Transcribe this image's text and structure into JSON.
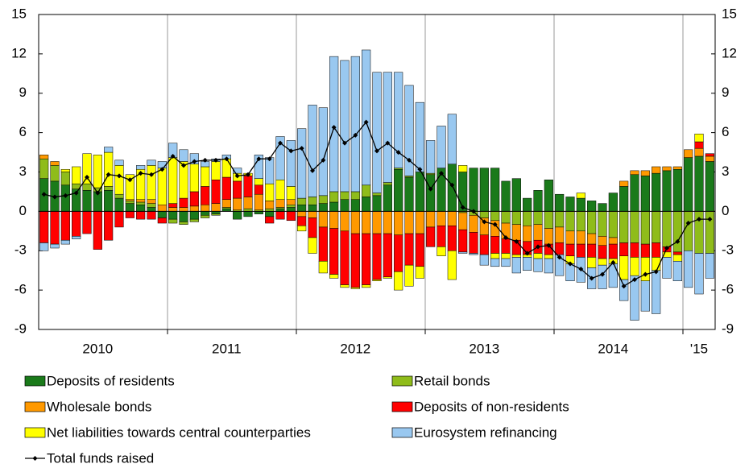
{
  "chart_data": {
    "type": "bar",
    "stacked": true,
    "categories": [
      null,
      null,
      null,
      null,
      null,
      "2010",
      null,
      null,
      null,
      null,
      null,
      null,
      null,
      null,
      null,
      null,
      null,
      "2011",
      null,
      null,
      null,
      null,
      null,
      null,
      null,
      null,
      null,
      null,
      null,
      "2012",
      null,
      null,
      null,
      null,
      null,
      null,
      null,
      null,
      null,
      null,
      null,
      "2013",
      null,
      null,
      null,
      null,
      null,
      null,
      null,
      null,
      null,
      null,
      null,
      "2014",
      null,
      null,
      null,
      null,
      null,
      null,
      null,
      "'15",
      null
    ],
    "ylim": [
      -9,
      15
    ],
    "yticks": [
      15,
      12,
      9,
      6,
      3,
      0,
      -3,
      -6,
      -9
    ],
    "y2lim": [
      -9,
      15
    ],
    "y2ticks": [
      15,
      12,
      9,
      6,
      3,
      0,
      -3,
      -6,
      -9
    ],
    "series": [
      {
        "name": "Deposits of residents",
        "color": "#1a7a1a",
        "values": [
          2.5,
          2.3,
          2.0,
          1.7,
          1.6,
          1.5,
          1.6,
          1.0,
          0.6,
          0.5,
          0.3,
          -0.5,
          -0.6,
          -0.8,
          -0.6,
          -0.3,
          -0.2,
          0.2,
          -0.6,
          -0.4,
          -0.2,
          -0.4,
          0.2,
          0.3,
          0.5,
          0.5,
          0.6,
          0.7,
          0.9,
          0.9,
          1.1,
          1.2,
          2.0,
          3.2,
          2.6,
          3.0,
          2.8,
          3.3,
          3.6,
          3.0,
          3.3,
          3.3,
          3.3,
          2.3,
          2.5,
          1.0,
          1.6,
          2.4,
          1.3,
          1.1,
          1.0,
          0.8,
          0.6,
          1.4,
          1.9,
          2.8,
          2.7,
          2.9,
          3.1,
          3.2,
          4.1,
          4.2,
          3.8
        ]
      },
      {
        "name": "Retail bonds",
        "color": "#8fbc1a",
        "values": [
          1.5,
          1.2,
          1.0,
          0.4,
          0.5,
          0.3,
          0.3,
          0.3,
          0.2,
          0.2,
          0.3,
          0,
          -0.3,
          -0.2,
          -0.2,
          -0.2,
          -0.1,
          0.1,
          0.1,
          0.2,
          0.1,
          0.2,
          0.1,
          0.2,
          0.5,
          0.6,
          0.6,
          0.8,
          0.6,
          0.6,
          0.9,
          0.2,
          0.2,
          0.1,
          0.1,
          0,
          0.1,
          0,
          0,
          -0.1,
          -0.3,
          -0.5,
          -0.7,
          -0.9,
          -1.0,
          -1.1,
          -1.0,
          -1.3,
          -1.2,
          -1.5,
          -1.5,
          -1.7,
          -1.9,
          -2.0,
          -2.4,
          -2.4,
          -2.5,
          -2.4,
          -2.7,
          -3.1,
          -3.0,
          -3.2,
          -3.2
        ]
      },
      {
        "name": "Wholesale bonds",
        "color": "#ff9900",
        "values": [
          0.3,
          0.3,
          0,
          0,
          0,
          0,
          0,
          0,
          0.1,
          0.2,
          0.3,
          0.5,
          0.3,
          0.3,
          0.4,
          0.5,
          0.6,
          0.6,
          0.9,
          0.9,
          1.2,
          0.6,
          0.6,
          0.4,
          -0.4,
          -0.5,
          -1.2,
          -1.3,
          -1.5,
          -1.7,
          -1.7,
          -1.7,
          -1.7,
          -1.8,
          -1.7,
          -1.7,
          -1.2,
          -1.1,
          -1.1,
          -1.3,
          -1.3,
          -1.3,
          -1.2,
          -1.2,
          -1.2,
          -1.2,
          -1.2,
          -1.2,
          -1.2,
          -1.0,
          -1.0,
          -0.8,
          -0.7,
          -0.5,
          0.4,
          0.3,
          0.4,
          0.5,
          0.3,
          0.2,
          0.6,
          0.6,
          0.4
        ]
      },
      {
        "name": "Deposits of non-residents",
        "color": "#ff0000",
        "values": [
          -2.4,
          -2.5,
          -2.2,
          -1.9,
          -1.7,
          -2.9,
          -2.2,
          -1.2,
          -0.5,
          -0.6,
          -0.6,
          -0.4,
          0.3,
          0.7,
          1.1,
          1.4,
          1.8,
          1.7,
          1.3,
          1.6,
          0.7,
          -0.5,
          -0.6,
          -0.7,
          -0.7,
          -1.5,
          -2.6,
          -3.5,
          -4.1,
          -4.1,
          -3.9,
          -3.5,
          -3.3,
          -2.8,
          -2.4,
          -2.5,
          -1.5,
          -1.6,
          -1.9,
          -1.7,
          -1.6,
          -1.5,
          -1.3,
          -1.1,
          -1.1,
          -1.0,
          -1.0,
          -0.8,
          -0.9,
          -0.9,
          -1.0,
          -1.0,
          -1.0,
          -1.1,
          -1.0,
          -1.1,
          -1.0,
          -1.1,
          -0.4,
          -0.2,
          0,
          0.5,
          0.2
        ]
      },
      {
        "name": "Net liabilities towards central counterparties",
        "color": "#ffff00",
        "values": [
          0,
          0,
          0.2,
          1.3,
          2.3,
          2.5,
          2.6,
          2.2,
          1.9,
          2.3,
          2.6,
          2.8,
          3.5,
          2.8,
          2.1,
          1.5,
          1.4,
          1.4,
          0.6,
          0.2,
          0.5,
          1.3,
          1.5,
          1.0,
          -0.4,
          -1.2,
          -0.9,
          -0.3,
          -0.2,
          -0.1,
          -0.2,
          -0.1,
          -0.1,
          -1.4,
          -1.6,
          -0.9,
          0,
          -0.7,
          -2.2,
          0.5,
          0,
          0,
          -0.4,
          -0.4,
          -0.2,
          -0.2,
          -0.4,
          -0.3,
          0,
          -0.6,
          0.4,
          -0.8,
          -0.5,
          -0.4,
          -1.8,
          -1.4,
          -1.8,
          -1.0,
          -0.4,
          -0.5,
          0,
          0.6,
          0
        ]
      },
      {
        "name": "Eurosystem refinancing",
        "color": "#99c8f0",
        "values": [
          -0.6,
          -0.3,
          -0.3,
          -0.2,
          0,
          0,
          0.4,
          0.4,
          0,
          0.3,
          0.4,
          0.5,
          1.1,
          0.9,
          0.8,
          0.4,
          0.2,
          0.3,
          0.4,
          0,
          1.8,
          2.0,
          3.3,
          3.5,
          5.3,
          7.0,
          6.7,
          10.3,
          10.0,
          10.3,
          10.3,
          9.2,
          8.4,
          7.3,
          6.9,
          5.3,
          2.5,
          3.2,
          3.8,
          -0.1,
          -0.1,
          -0.8,
          -0.6,
          -0.6,
          -1.2,
          -1.0,
          -1.0,
          -1.1,
          -1.6,
          -1.3,
          -1.9,
          -1.6,
          -1.8,
          -1.8,
          -1.6,
          -3.4,
          -2.3,
          -3.3,
          -1.6,
          -1.5,
          -2.8,
          -3.1,
          -1.9
        ]
      },
      {
        "name": "Total funds raised",
        "type": "line",
        "color": "#000000",
        "values": [
          1.3,
          1.1,
          1.2,
          1.4,
          2.6,
          1.4,
          2.8,
          2.7,
          2.4,
          2.9,
          2.8,
          3.2,
          4.2,
          3.5,
          3.8,
          3.9,
          3.9,
          4.0,
          2.7,
          2.8,
          4.0,
          4.0,
          5.2,
          4.6,
          4.8,
          3.1,
          3.9,
          6.4,
          5.2,
          5.8,
          6.8,
          4.6,
          5.2,
          4.5,
          3.9,
          3.2,
          1.7,
          2.9,
          2.0,
          0.3,
          0,
          -0.8,
          -1.0,
          -2.0,
          -2.3,
          -3.2,
          -2.7,
          -2.6,
          -3.5,
          -4.0,
          -4.4,
          -5.1,
          -4.8,
          -3.9,
          -5.7,
          -5.2,
          -4.8,
          -4.6,
          -2.8,
          -2.3,
          -0.9,
          -0.6,
          -0.6
        ]
      }
    ]
  }
}
